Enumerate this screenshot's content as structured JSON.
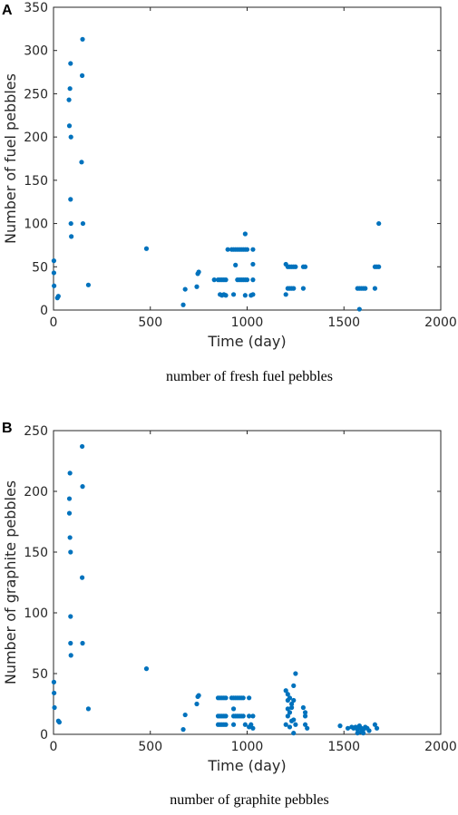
{
  "chart_data": [
    {
      "type": "scatter",
      "panel_label": "A",
      "xlabel": "Time (day)",
      "ylabel": "Number of fuel pebbles",
      "caption": "number of fresh fuel pebbles",
      "xlim": [
        0,
        2000
      ],
      "ylim": [
        0,
        350
      ],
      "xticks": [
        0,
        500,
        1000,
        1500,
        2000
      ],
      "yticks": [
        0,
        50,
        100,
        150,
        200,
        250,
        300,
        350
      ],
      "marker_color": "#0072BD",
      "points": [
        [
          2,
          57
        ],
        [
          2,
          43
        ],
        [
          3,
          28
        ],
        [
          20,
          14
        ],
        [
          25,
          16
        ],
        [
          88,
          285
        ],
        [
          85,
          256
        ],
        [
          80,
          243
        ],
        [
          82,
          213
        ],
        [
          90,
          200
        ],
        [
          88,
          128
        ],
        [
          90,
          100
        ],
        [
          92,
          85
        ],
        [
          150,
          313
        ],
        [
          148,
          271
        ],
        [
          145,
          171
        ],
        [
          152,
          100
        ],
        [
          180,
          29
        ],
        [
          480,
          71
        ],
        [
          670,
          6
        ],
        [
          680,
          24
        ],
        [
          740,
          27
        ],
        [
          745,
          42
        ],
        [
          750,
          44
        ],
        [
          830,
          35
        ],
        [
          850,
          35
        ],
        [
          860,
          35
        ],
        [
          870,
          35
        ],
        [
          880,
          35
        ],
        [
          890,
          35
        ],
        [
          860,
          18
        ],
        [
          870,
          17
        ],
        [
          880,
          18
        ],
        [
          890,
          17
        ],
        [
          900,
          70
        ],
        [
          920,
          70
        ],
        [
          930,
          70
        ],
        [
          940,
          70
        ],
        [
          950,
          70
        ],
        [
          960,
          70
        ],
        [
          970,
          70
        ],
        [
          980,
          70
        ],
        [
          990,
          70
        ],
        [
          1000,
          70
        ],
        [
          1030,
          70
        ],
        [
          940,
          52
        ],
        [
          950,
          35
        ],
        [
          960,
          35
        ],
        [
          970,
          35
        ],
        [
          980,
          35
        ],
        [
          990,
          35
        ],
        [
          1000,
          35
        ],
        [
          1030,
          35
        ],
        [
          1030,
          53
        ],
        [
          930,
          18
        ],
        [
          990,
          17
        ],
        [
          1030,
          18
        ],
        [
          1020,
          17
        ],
        [
          990,
          88
        ],
        [
          1200,
          53
        ],
        [
          1210,
          50
        ],
        [
          1220,
          50
        ],
        [
          1230,
          50
        ],
        [
          1240,
          50
        ],
        [
          1250,
          50
        ],
        [
          1290,
          50
        ],
        [
          1300,
          50
        ],
        [
          1200,
          18
        ],
        [
          1210,
          25
        ],
        [
          1220,
          25
        ],
        [
          1230,
          25
        ],
        [
          1240,
          25
        ],
        [
          1290,
          25
        ],
        [
          1580,
          1
        ],
        [
          1570,
          25
        ],
        [
          1580,
          25
        ],
        [
          1590,
          25
        ],
        [
          1600,
          25
        ],
        [
          1610,
          25
        ],
        [
          1660,
          25
        ],
        [
          1660,
          50
        ],
        [
          1670,
          50
        ],
        [
          1680,
          50
        ],
        [
          1680,
          100
        ]
      ]
    },
    {
      "type": "scatter",
      "panel_label": "B",
      "xlabel": "Time (day)",
      "ylabel": "Number of graphite pebbles",
      "caption": "number of graphite pebbles",
      "xlim": [
        0,
        2000
      ],
      "ylim": [
        0,
        250
      ],
      "xticks": [
        0,
        500,
        1000,
        1500,
        2000
      ],
      "yticks": [
        0,
        50,
        100,
        150,
        200,
        250
      ],
      "marker_color": "#0072BD",
      "points": [
        [
          2,
          43
        ],
        [
          3,
          34
        ],
        [
          5,
          22
        ],
        [
          25,
          11
        ],
        [
          30,
          10
        ],
        [
          85,
          215
        ],
        [
          82,
          194
        ],
        [
          82,
          182
        ],
        [
          85,
          162
        ],
        [
          88,
          150
        ],
        [
          88,
          97
        ],
        [
          88,
          75
        ],
        [
          90,
          65
        ],
        [
          148,
          237
        ],
        [
          150,
          204
        ],
        [
          148,
          129
        ],
        [
          150,
          75
        ],
        [
          180,
          21
        ],
        [
          480,
          54
        ],
        [
          670,
          4
        ],
        [
          680,
          16
        ],
        [
          740,
          25
        ],
        [
          745,
          31
        ],
        [
          750,
          32
        ],
        [
          850,
          30
        ],
        [
          860,
          30
        ],
        [
          870,
          30
        ],
        [
          880,
          30
        ],
        [
          890,
          30
        ],
        [
          850,
          15
        ],
        [
          860,
          15
        ],
        [
          870,
          15
        ],
        [
          880,
          15
        ],
        [
          890,
          15
        ],
        [
          850,
          8
        ],
        [
          860,
          8
        ],
        [
          870,
          8
        ],
        [
          880,
          8
        ],
        [
          890,
          8
        ],
        [
          920,
          30
        ],
        [
          930,
          30
        ],
        [
          940,
          30
        ],
        [
          950,
          30
        ],
        [
          960,
          30
        ],
        [
          970,
          30
        ],
        [
          980,
          30
        ],
        [
          1010,
          30
        ],
        [
          930,
          15
        ],
        [
          940,
          15
        ],
        [
          950,
          15
        ],
        [
          960,
          15
        ],
        [
          970,
          15
        ],
        [
          980,
          15
        ],
        [
          1010,
          15
        ],
        [
          1030,
          15
        ],
        [
          930,
          21
        ],
        [
          930,
          8
        ],
        [
          990,
          8
        ],
        [
          1010,
          6
        ],
        [
          1020,
          8
        ],
        [
          1030,
          5
        ],
        [
          1200,
          36
        ],
        [
          1210,
          33
        ],
        [
          1210,
          28
        ],
        [
          1220,
          30
        ],
        [
          1230,
          25
        ],
        [
          1240,
          28
        ],
        [
          1250,
          50
        ],
        [
          1240,
          40
        ],
        [
          1230,
          22
        ],
        [
          1220,
          18
        ],
        [
          1210,
          15
        ],
        [
          1230,
          11
        ],
        [
          1240,
          12
        ],
        [
          1200,
          8
        ],
        [
          1220,
          6
        ],
        [
          1250,
          8
        ],
        [
          1240,
          1
        ],
        [
          1210,
          21
        ],
        [
          1290,
          22
        ],
        [
          1300,
          18
        ],
        [
          1300,
          15
        ],
        [
          1300,
          8
        ],
        [
          1310,
          5
        ],
        [
          1480,
          7
        ],
        [
          1520,
          5
        ],
        [
          1540,
          6
        ],
        [
          1550,
          5
        ],
        [
          1560,
          6
        ],
        [
          1570,
          4
        ],
        [
          1580,
          7
        ],
        [
          1590,
          5
        ],
        [
          1600,
          4
        ],
        [
          1610,
          6
        ],
        [
          1620,
          5
        ],
        [
          1630,
          3
        ],
        [
          1570,
          1
        ],
        [
          1590,
          2
        ],
        [
          1600,
          1
        ],
        [
          1660,
          8
        ],
        [
          1670,
          5
        ]
      ]
    }
  ]
}
